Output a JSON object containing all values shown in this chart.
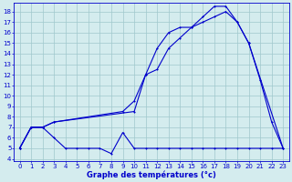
{
  "title": "Graphe des températures (°c)",
  "bg_color": "#d4ecee",
  "grid_color": "#a0c8cc",
  "line_color": "#0000cc",
  "xlim": [
    -0.5,
    23.5
  ],
  "ylim": [
    3.8,
    18.8
  ],
  "yticks": [
    4,
    5,
    6,
    7,
    8,
    9,
    10,
    11,
    12,
    13,
    14,
    15,
    16,
    17,
    18
  ],
  "xticks": [
    0,
    1,
    2,
    3,
    4,
    5,
    6,
    7,
    8,
    9,
    10,
    11,
    12,
    13,
    14,
    15,
    16,
    17,
    18,
    19,
    20,
    21,
    22,
    23
  ],
  "series1_x": [
    0,
    1,
    2,
    3,
    10,
    11,
    12,
    13,
    14,
    15,
    16,
    17,
    18,
    19,
    20,
    21,
    22,
    23
  ],
  "series1_y": [
    5.0,
    7.0,
    7.0,
    7.5,
    8.5,
    12.0,
    14.5,
    16.0,
    16.5,
    16.5,
    17.0,
    17.5,
    18.0,
    17.0,
    15.0,
    11.5,
    7.5,
    5.0
  ],
  "series2_x": [
    0,
    1,
    2,
    3,
    4,
    5,
    6,
    7,
    8,
    9,
    10,
    11,
    12,
    13,
    14,
    15,
    16,
    17,
    18,
    19,
    20,
    21,
    22,
    23
  ],
  "series2_y": [
    5.0,
    7.0,
    7.0,
    6.0,
    5.0,
    5.0,
    5.0,
    5.0,
    4.5,
    6.5,
    5.0,
    5.0,
    5.0,
    5.0,
    5.0,
    5.0,
    5.0,
    5.0,
    5.0,
    5.0,
    5.0,
    5.0,
    5.0,
    5.0
  ],
  "series3_x": [
    0,
    1,
    2,
    3,
    9,
    10,
    11,
    12,
    13,
    14,
    15,
    16,
    17,
    18,
    19,
    20,
    23
  ],
  "series3_y": [
    5.0,
    7.0,
    7.0,
    7.5,
    8.5,
    9.5,
    12.0,
    12.5,
    14.5,
    15.5,
    16.5,
    17.5,
    18.5,
    18.5,
    17.0,
    15.0,
    5.0
  ]
}
